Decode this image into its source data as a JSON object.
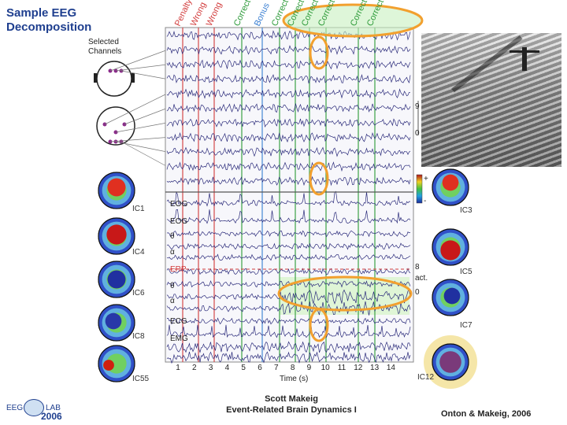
{
  "title_line1": "Sample EEG",
  "title_line2": "Decomposition",
  "selected_label_1": "Selected",
  "selected_label_2": "Channels",
  "event_labels": [
    {
      "text": "Penalty",
      "color": "#d23c3c"
    },
    {
      "text": "Wrong",
      "color": "#d23c3c"
    },
    {
      "text": "Wrong",
      "color": "#d23c3c"
    },
    {
      "text": "Correct",
      "color": "#2e9b3a"
    },
    {
      "text": "Bonus",
      "color": "#3a7fd2"
    },
    {
      "text": "Correct",
      "color": "#2e9b3a"
    },
    {
      "text": "Correct",
      "color": "#2e9b3a"
    },
    {
      "text": "Correct",
      "color": "#2e9b3a"
    },
    {
      "text": "Correct",
      "color": "#2e9b3a"
    },
    {
      "text": "Correct",
      "color": "#2e9b3a"
    },
    {
      "text": "Correct",
      "color": "#2e9b3a"
    }
  ],
  "component_labels": [
    "EOG",
    "EOG",
    "θ",
    "α",
    "ERP",
    "θ",
    "α",
    "ECG",
    "EMG"
  ],
  "ic_left": [
    "IC1",
    "IC4",
    "IC6",
    "IC8",
    "IC55"
  ],
  "ic_right": [
    "IC3",
    "IC5",
    "IC7",
    "IC12"
  ],
  "x_ticks": [
    "1",
    "2",
    "3",
    "4",
    "5",
    "6",
    "7",
    "8",
    "9",
    "10",
    "11",
    "12",
    "13",
    "14"
  ],
  "x_axis_label": "Time (s)",
  "right_scale_labels": [
    "9",
    "0",
    "8",
    "act.",
    "0"
  ],
  "colorbar_plus": "+",
  "colorbar_minus": "-",
  "footer_name": "Scott Makeig",
  "footer_subtitle": "Event-Related Brain Dynamics I",
  "footer_citation": "Onton & Makeig,  2006",
  "logo_eeg": "EEG",
  "logo_lab": "LAB",
  "logo_year": "2006",
  "colors": {
    "title": "#1f3f8f",
    "trace": "#2a2a7a",
    "highlight_orange": "#f2a02e",
    "highlight_green": "#c8f0c0",
    "erp_red": "#d23c3c"
  }
}
